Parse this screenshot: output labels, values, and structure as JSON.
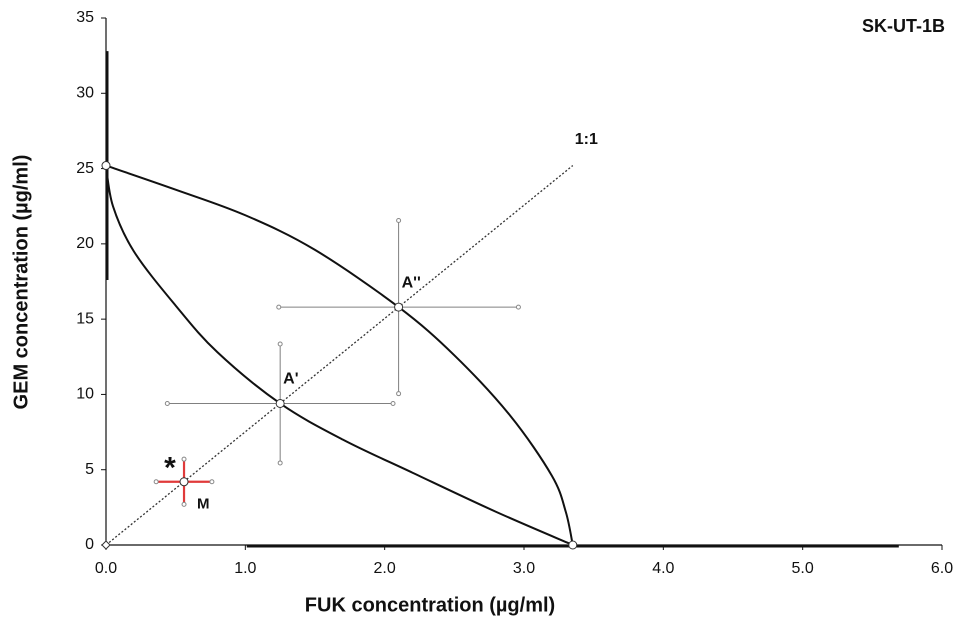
{
  "chart_data": {
    "type": "isobologram",
    "title": "SK-UT-1B",
    "xlabel": "FUK concentration (µg/ml)",
    "ylabel": "GEM concentration (µg/ml)",
    "xlim": [
      0,
      6
    ],
    "ylim": [
      0,
      35
    ],
    "xticks": [
      {
        "value": 0,
        "label": "0.0"
      },
      {
        "value": 1,
        "label": "1.0"
      },
      {
        "value": 2,
        "label": "2.0"
      },
      {
        "value": 3,
        "label": "3.0"
      },
      {
        "value": 4,
        "label": "4.0"
      },
      {
        "value": 5,
        "label": "5.0"
      },
      {
        "value": 6,
        "label": "6.0"
      }
    ],
    "yticks": [
      0,
      5,
      10,
      15,
      20,
      25,
      30,
      35
    ],
    "grid": false,
    "curves": [
      {
        "color": "#111111",
        "x": [
          0,
          0.5,
          1.0,
          1.5,
          2.1,
          2.5,
          2.9,
          3.2,
          3.3,
          3.35
        ],
        "y": [
          25.2,
          23.6,
          21.9,
          19.6,
          15.8,
          12.6,
          8.6,
          4.6,
          2.2,
          0
        ]
      },
      {
        "color": "#111111",
        "x": [
          0,
          0.05,
          0.2,
          0.5,
          0.8,
          1.25,
          1.7,
          2.2,
          2.8,
          3.35
        ],
        "y": [
          25.2,
          22.5,
          19.5,
          15.9,
          12.8,
          9.4,
          7.0,
          4.8,
          2.2,
          0
        ]
      }
    ],
    "reference_line": {
      "label": "1:1",
      "color": "#333333",
      "x": [
        0,
        3.35
      ],
      "y": [
        0,
        25.2
      ]
    },
    "intercepts": [
      {
        "x": 0,
        "y": 25.2,
        "yerr": 7.6,
        "color": "#111111"
      },
      {
        "x": 3.35,
        "y": 0,
        "xerr": 2.34,
        "color": "#111111"
      }
    ],
    "points": [
      {
        "label": "A''",
        "x": 2.1,
        "y": 15.8,
        "xerr": 0.86,
        "yerr": 5.75,
        "color": "#808080"
      },
      {
        "label": "A'",
        "x": 1.25,
        "y": 9.4,
        "xerr": 0.81,
        "yerr": 3.95,
        "color": "#808080"
      },
      {
        "label": "M",
        "annotation": "*",
        "x": 0.56,
        "y": 4.2,
        "xerr": 0.2,
        "yerr": 1.5,
        "color": "#e03a3a"
      }
    ]
  }
}
